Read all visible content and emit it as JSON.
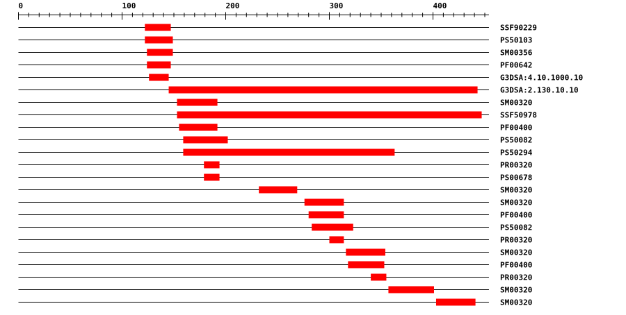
{
  "chart_data": {
    "type": "bar",
    "subtype": "domain-feature-map",
    "xlim": [
      0,
      454
    ],
    "x_ticks_major": [
      0,
      100,
      200,
      300,
      400
    ],
    "x_tick_minor_step": 10,
    "axis_position": "top",
    "bar_color": "#ff0000",
    "line_color": "#000000",
    "grid": false,
    "tracks": [
      {
        "label": "SSF90229",
        "start": 122,
        "end": 147
      },
      {
        "label": "PS50103",
        "start": 122,
        "end": 149
      },
      {
        "label": "SM00356",
        "start": 124,
        "end": 149
      },
      {
        "label": "PF00642",
        "start": 124,
        "end": 147
      },
      {
        "label": "G3DSA:4.10.1000.10",
        "start": 126,
        "end": 145
      },
      {
        "label": "G3DSA:2.130.10.10",
        "start": 145,
        "end": 443
      },
      {
        "label": "SM00320",
        "start": 153,
        "end": 192
      },
      {
        "label": "SSF50978",
        "start": 153,
        "end": 447
      },
      {
        "label": "PF00400",
        "start": 155,
        "end": 192
      },
      {
        "label": "PS50082",
        "start": 159,
        "end": 202
      },
      {
        "label": "PS50294",
        "start": 159,
        "end": 363
      },
      {
        "label": "PR00320",
        "start": 179,
        "end": 194
      },
      {
        "label": "PS00678",
        "start": 179,
        "end": 194
      },
      {
        "label": "SM00320",
        "start": 232,
        "end": 269
      },
      {
        "label": "SM00320",
        "start": 276,
        "end": 314
      },
      {
        "label": "PF00400",
        "start": 280,
        "end": 314
      },
      {
        "label": "PS50082",
        "start": 283,
        "end": 323
      },
      {
        "label": "PR00320",
        "start": 300,
        "end": 314
      },
      {
        "label": "SM00320",
        "start": 316,
        "end": 354
      },
      {
        "label": "PF00400",
        "start": 318,
        "end": 353
      },
      {
        "label": "PR00320",
        "start": 340,
        "end": 355
      },
      {
        "label": "SM00320",
        "start": 357,
        "end": 401
      },
      {
        "label": "SM00320",
        "start": 403,
        "end": 441
      }
    ]
  }
}
